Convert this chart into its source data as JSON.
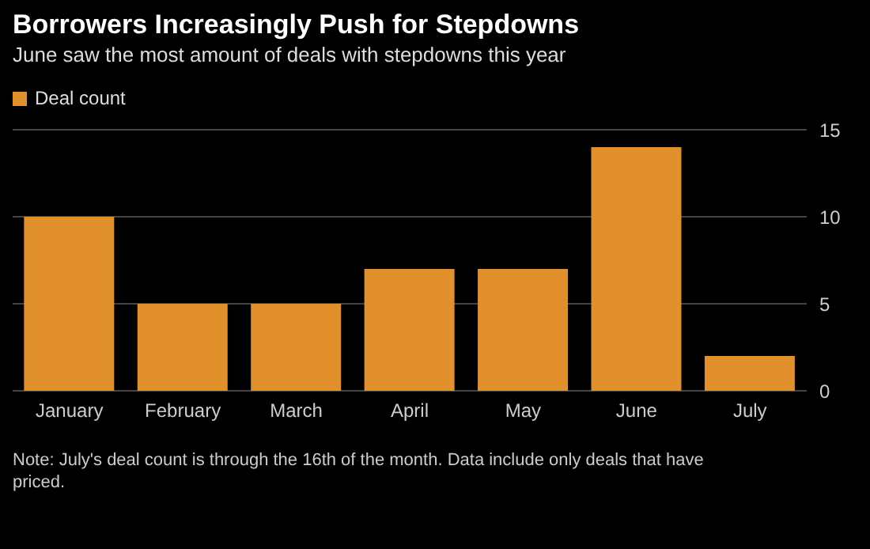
{
  "chart_data": {
    "type": "bar",
    "title": "Borrowers Increasingly Push for Stepdowns",
    "subtitle": "June saw the most amount of deals with stepdowns this year",
    "categories": [
      "January",
      "February",
      "March",
      "April",
      "May",
      "June",
      "July"
    ],
    "series": [
      {
        "name": "Deal count",
        "color": "#e1902c",
        "values": [
          10,
          5,
          5,
          7,
          7,
          14,
          2
        ]
      }
    ],
    "ylim": [
      0,
      15
    ],
    "yticks": [
      0,
      5,
      10,
      15
    ],
    "grid": "y",
    "legend": "top left",
    "annotations": [
      "Note: July's deal count is through the 16th of the month. Data include only deals that have priced."
    ]
  }
}
